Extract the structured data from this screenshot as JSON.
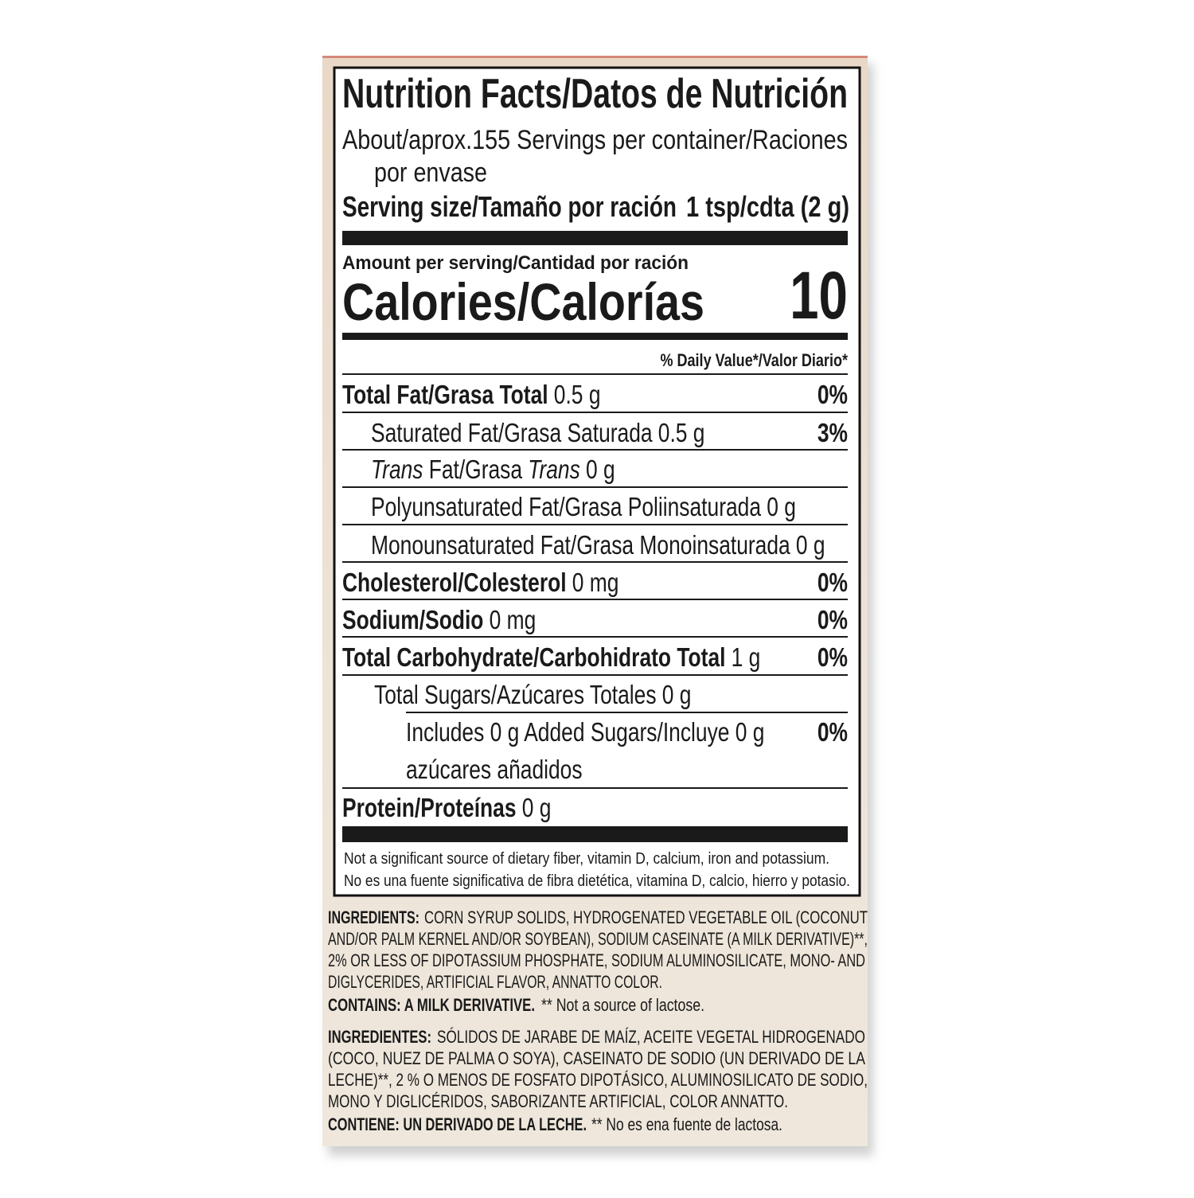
{
  "title": "Nutrition Facts/Datos de Nutrición",
  "servings": {
    "line1": "About/aprox.155 Servings per container/Raciones",
    "line2": "por envase"
  },
  "serving_size": {
    "label": "Serving size/Tamaño por ración",
    "value": "1 tsp/cdta (2 g)"
  },
  "amount_per_serving": "Amount per serving/Cantidad por ración",
  "calories": {
    "label": "Calories/Calorías",
    "value": 10
  },
  "daily_value_header": "% Daily Value*/Valor Diario*",
  "nutrients": [
    {
      "label": "Total Fat/Grasa Total",
      "amount": "0.5 g",
      "dv": "0%"
    },
    {
      "label": "Saturated Fat/Grasa Saturada",
      "amount": "0.5 g",
      "dv": "3%"
    },
    {
      "label": [
        "Trans",
        "Fat/Grasa",
        "Trans"
      ],
      "amount": "0 g"
    },
    {
      "label": "Polyunsaturated Fat/Grasa Poliinsaturada",
      "amount": "0 g"
    },
    {
      "label": "Monounsaturated Fat/Grasa Monoinsaturada",
      "amount": "0 g"
    },
    {
      "label": "Cholesterol/Colesterol",
      "amount": "0 mg",
      "dv": "0%"
    },
    {
      "label": "Sodium/Sodio",
      "amount": "0 mg",
      "dv": "0%"
    },
    {
      "label": "Total Carbohydrate/Carbohidrato Total",
      "amount": "1 g",
      "dv": "0%"
    },
    {
      "label": "Total Sugars/Azúcares Totales",
      "amount": "0 g"
    },
    {
      "label": "Includes 0 g Added Sugars/Incluye 0 g",
      "label_line2": "azúcares añadidos",
      "dv": "0%"
    },
    {
      "label": "Protein/Proteínas",
      "amount": "0 g"
    }
  ],
  "footnote": [
    "Not a significant source of dietary fiber, vitamin D, calcium, iron and potassium.",
    "No es una fuente significativa de fibra dietética, vitamina D, calcio, hierro y potasio."
  ],
  "ingredients": [
    {
      "label": "INGREDIENTS:",
      "lines": [
        "CORN SYRUP SOLIDS, HYDROGENATED VEGETABLE OIL (COCONUT",
        "AND/OR PALM KERNEL AND/OR SOYBEAN), SODIUM CASEINATE (A MILK DERIVATIVE)**,",
        "2% OR LESS OF DIPOTASSIUM PHOSPHATE, SODIUM ALUMINOSILICATE, MONO- AND",
        "DIGLYCERIDES, ARTIFICIAL FLAVOR, ANNATTO COLOR."
      ],
      "contains_label": "CONTAINS: A MILK DERIVATIVE.",
      "contains_note": "** Not a source of lactose."
    },
    {
      "label": "INGREDIENTES:",
      "lines": [
        "SÓLIDOS DE JARABE DE MAÍZ, ACEITE VEGETAL HIDROGENADO",
        "(COCO, NUEZ DE PALMA O SOYA), CASEINATO DE SODIO (UN DERIVADO DE LA",
        "LECHE)**, 2 % O MENOS DE FOSFATO DIPOTÁSICO, ALUMINOSILICATO DE SODIO,",
        "MONO Y DIGLICÉRIDOS, SABORIZANTE ARTIFICIAL, COLOR ANNATTO."
      ],
      "contains_label": "CONTIENE: UN DERIVADO DE LA LECHE.",
      "contains_note": "** No es ena fuente de lactosa."
    }
  ]
}
